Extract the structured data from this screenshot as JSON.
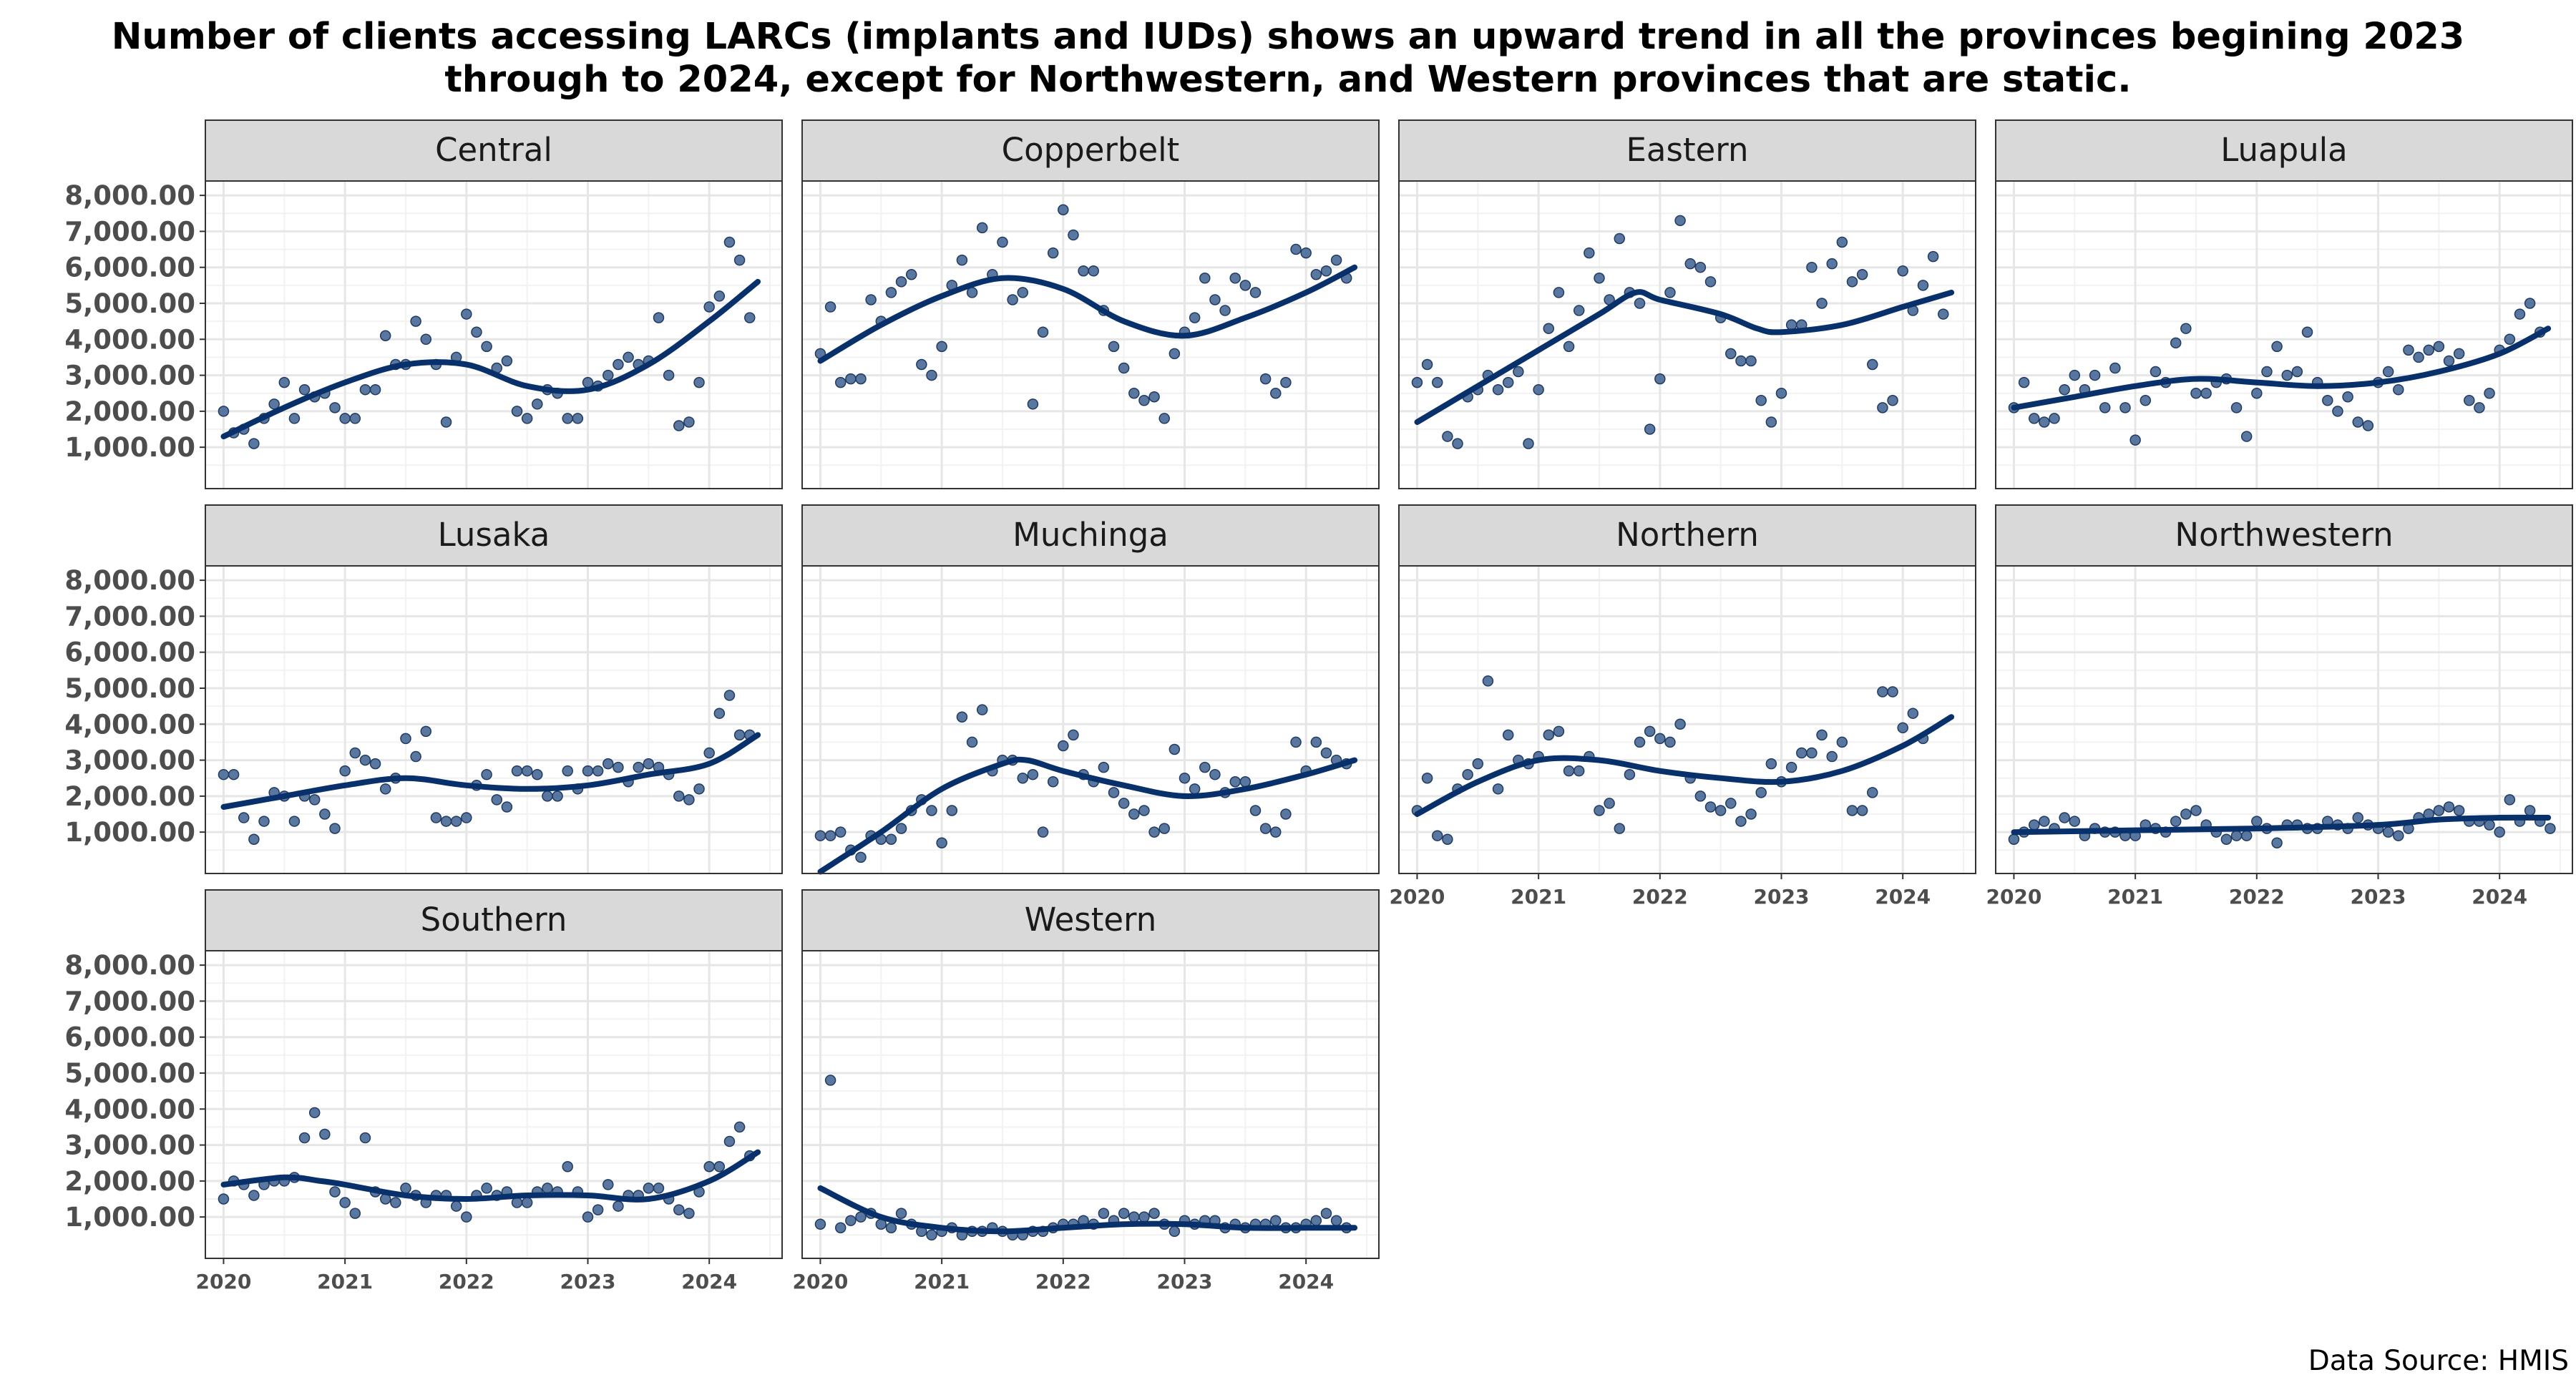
{
  "chart_data": {
    "type": "scatter",
    "title_line1": "Number of clients accessing LARCs (implants and IUDs) shows an upward trend in all the provinces begining 2023",
    "title_line2": "through to 2024, except for Northwestern, and Western provinces that are static.",
    "caption": "Data Source: HMIS",
    "xlabel": "",
    "ylabel": "",
    "x_ticks": [
      2020,
      2021,
      2022,
      2023,
      2024
    ],
    "y_ticks": [
      "1,000.00",
      "2,000.00",
      "3,000.00",
      "4,000.00",
      "5,000.00",
      "6,000.00",
      "7,000.00",
      "8,000.00"
    ],
    "y_tick_values": [
      1000,
      2000,
      3000,
      4000,
      5000,
      6000,
      7000,
      8000
    ],
    "xlim": [
      2019.85,
      2024.6
    ],
    "ylim": [
      -150,
      8400
    ],
    "grid": true,
    "point_color": "#3d5f8f",
    "line_color": "#08306b",
    "strip_color": "#d9d9d9",
    "x_start": "2020-01",
    "interval": "monthly",
    "panels": [
      {
        "name": "Central",
        "trend": [
          [
            2020,
            1300
          ],
          [
            2020.5,
            2100
          ],
          [
            2021,
            2800
          ],
          [
            2021.5,
            3300
          ],
          [
            2022,
            3300
          ],
          [
            2022.5,
            2700
          ],
          [
            2023,
            2600
          ],
          [
            2023.5,
            3300
          ],
          [
            2024,
            4500
          ],
          [
            2024.4,
            5600
          ]
        ],
        "points": [
          2000,
          1400,
          1500,
          1100,
          1800,
          2200,
          2800,
          1800,
          2600,
          2400,
          2500,
          2100,
          1800,
          1800,
          2600,
          2600,
          4100,
          3300,
          3300,
          4500,
          4000,
          3300,
          1700,
          3500,
          4700,
          4200,
          3800,
          3200,
          3400,
          2000,
          1800,
          2200,
          2600,
          2500,
          1800,
          1800,
          2800,
          2700,
          3000,
          3300,
          3500,
          3300,
          3400,
          4600,
          3000,
          1600,
          1700,
          2800,
          4900,
          5200,
          6700,
          6200,
          4600
        ]
      },
      {
        "name": "Copperbelt",
        "trend": [
          [
            2020,
            3400
          ],
          [
            2020.5,
            4400
          ],
          [
            2021,
            5200
          ],
          [
            2021.5,
            5700
          ],
          [
            2022,
            5400
          ],
          [
            2022.5,
            4500
          ],
          [
            2023,
            4100
          ],
          [
            2023.5,
            4600
          ],
          [
            2024,
            5300
          ],
          [
            2024.4,
            6000
          ]
        ],
        "points": [
          3600,
          4900,
          2800,
          2900,
          2900,
          5100,
          4500,
          5300,
          5600,
          5800,
          3300,
          3000,
          3800,
          5500,
          6200,
          5300,
          7100,
          5800,
          6700,
          5100,
          5300,
          2200,
          4200,
          6400,
          7600,
          6900,
          5900,
          5900,
          4800,
          3800,
          3200,
          2500,
          2300,
          2400,
          1800,
          3600,
          4200,
          4600,
          5700,
          5100,
          4800,
          5700,
          5500,
          5300,
          2900,
          2500,
          2800,
          6500,
          6400,
          5800,
          5900,
          6200,
          5700
        ]
      },
      {
        "name": "Eastern",
        "trend": [
          [
            2020,
            1700
          ],
          [
            2020.5,
            2700
          ],
          [
            2021,
            3700
          ],
          [
            2021.5,
            4700
          ],
          [
            2021.8,
            5300
          ],
          [
            2022,
            5100
          ],
          [
            2022.5,
            4700
          ],
          [
            2022.8,
            4300
          ],
          [
            2023,
            4200
          ],
          [
            2023.5,
            4400
          ],
          [
            2024,
            4900
          ],
          [
            2024.4,
            5300
          ]
        ],
        "points": [
          2800,
          3300,
          2800,
          1300,
          1100,
          2400,
          2600,
          3000,
          2600,
          2800,
          3100,
          1100,
          2600,
          4300,
          5300,
          3800,
          4800,
          6400,
          5700,
          5100,
          6800,
          5300,
          5000,
          1500,
          2900,
          5300,
          7300,
          6100,
          6000,
          5600,
          4600,
          3600,
          3400,
          3400,
          2300,
          1700,
          2500,
          4400,
          4400,
          6000,
          5000,
          6100,
          6700,
          5600,
          5800,
          3300,
          2100,
          2300,
          5900,
          4800,
          5500,
          6300,
          4700
        ]
      },
      {
        "name": "Luapula",
        "trend": [
          [
            2020,
            2100
          ],
          [
            2020.5,
            2400
          ],
          [
            2021,
            2700
          ],
          [
            2021.5,
            2900
          ],
          [
            2022,
            2800
          ],
          [
            2022.5,
            2700
          ],
          [
            2023,
            2800
          ],
          [
            2023.5,
            3100
          ],
          [
            2024,
            3600
          ],
          [
            2024.4,
            4300
          ]
        ],
        "points": [
          2100,
          2800,
          1800,
          1700,
          1800,
          2600,
          3000,
          2600,
          3000,
          2100,
          3200,
          2100,
          1200,
          2300,
          3100,
          2800,
          3900,
          4300,
          2500,
          2500,
          2800,
          2900,
          2100,
          1300,
          2500,
          3100,
          3800,
          3000,
          3100,
          4200,
          2800,
          2300,
          2000,
          2400,
          1700,
          1600,
          2800,
          3100,
          2600,
          3700,
          3500,
          3700,
          3800,
          3400,
          3600,
          2300,
          2100,
          2500,
          3700,
          4000,
          4700,
          5000,
          4200
        ]
      },
      {
        "name": "Lusaka",
        "trend": [
          [
            2020,
            1700
          ],
          [
            2020.5,
            2000
          ],
          [
            2021,
            2300
          ],
          [
            2021.5,
            2500
          ],
          [
            2022,
            2300
          ],
          [
            2022.5,
            2200
          ],
          [
            2023,
            2300
          ],
          [
            2023.5,
            2600
          ],
          [
            2024,
            2900
          ],
          [
            2024.4,
            3700
          ]
        ],
        "points": [
          2600,
          2600,
          1400,
          800,
          1300,
          2100,
          2000,
          1300,
          2000,
          1900,
          1500,
          1100,
          2700,
          3200,
          3000,
          2900,
          2200,
          2500,
          3600,
          3100,
          3800,
          1400,
          1300,
          1300,
          1400,
          2300,
          2600,
          1900,
          1700,
          2700,
          2700,
          2600,
          2000,
          2000,
          2700,
          2200,
          2700,
          2700,
          2900,
          2800,
          2400,
          2800,
          2900,
          2800,
          2600,
          2000,
          1900,
          2200,
          3200,
          4300,
          4800,
          3700,
          3700
        ]
      },
      {
        "name": "Muchinga",
        "trend": [
          [
            2020,
            -100
          ],
          [
            2020.5,
            1000
          ],
          [
            2021,
            2200
          ],
          [
            2021.5,
            2900
          ],
          [
            2021.7,
            3000
          ],
          [
            2022,
            2700
          ],
          [
            2022.5,
            2300
          ],
          [
            2023,
            2000
          ],
          [
            2023.5,
            2200
          ],
          [
            2024,
            2600
          ],
          [
            2024.4,
            3000
          ]
        ],
        "points": [
          900,
          900,
          1000,
          500,
          300,
          900,
          800,
          800,
          1100,
          1600,
          1900,
          1600,
          700,
          1600,
          4200,
          3500,
          4400,
          2700,
          3000,
          3000,
          2500,
          2600,
          1000,
          2400,
          3400,
          3700,
          2600,
          2400,
          2800,
          2100,
          1800,
          1500,
          1600,
          1000,
          1100,
          3300,
          2500,
          2200,
          2800,
          2600,
          2100,
          2400,
          2400,
          1600,
          1100,
          1000,
          1500,
          3500,
          2700,
          3500,
          3200,
          3000,
          2900
        ]
      },
      {
        "name": "Northern",
        "trend": [
          [
            2020,
            1500
          ],
          [
            2020.5,
            2400
          ],
          [
            2021,
            3000
          ],
          [
            2021.5,
            3000
          ],
          [
            2022,
            2700
          ],
          [
            2022.5,
            2500
          ],
          [
            2023,
            2400
          ],
          [
            2023.5,
            2700
          ],
          [
            2024,
            3400
          ],
          [
            2024.4,
            4200
          ]
        ],
        "points": [
          1600,
          2500,
          900,
          800,
          2200,
          2600,
          2900,
          5200,
          2200,
          3700,
          3000,
          2900,
          3100,
          3700,
          3800,
          2700,
          2700,
          3100,
          1600,
          1800,
          1100,
          2600,
          3500,
          3800,
          3600,
          3500,
          4000,
          2500,
          2000,
          1700,
          1600,
          1800,
          1300,
          1500,
          2100,
          2900,
          2400,
          2800,
          3200,
          3200,
          3700,
          3100,
          3500,
          1600,
          1600,
          2100,
          4900,
          4900,
          3900,
          4300,
          3600
        ]
      },
      {
        "name": "Northwestern",
        "trend": [
          [
            2020,
            1000
          ],
          [
            2021,
            1050
          ],
          [
            2022,
            1100
          ],
          [
            2023,
            1200
          ],
          [
            2023.5,
            1350
          ],
          [
            2024,
            1400
          ],
          [
            2024.4,
            1400
          ]
        ],
        "points": [
          800,
          1000,
          1200,
          1300,
          1100,
          1400,
          1300,
          900,
          1100,
          1000,
          1000,
          900,
          900,
          1200,
          1100,
          1000,
          1300,
          1500,
          1600,
          1200,
          1000,
          800,
          900,
          900,
          1300,
          1100,
          700,
          1200,
          1200,
          1100,
          1100,
          1300,
          1200,
          1100,
          1400,
          1200,
          1100,
          1000,
          900,
          1100,
          1400,
          1500,
          1600,
          1700,
          1600,
          1300,
          1300,
          1200,
          1000,
          1900,
          1300,
          1600,
          1300,
          1100
        ]
      },
      {
        "name": "Southern",
        "trend": [
          [
            2020,
            1900
          ],
          [
            2020.5,
            2100
          ],
          [
            2020.8,
            2000
          ],
          [
            2021,
            1900
          ],
          [
            2021.5,
            1600
          ],
          [
            2022,
            1500
          ],
          [
            2022.5,
            1600
          ],
          [
            2023,
            1600
          ],
          [
            2023.5,
            1500
          ],
          [
            2024,
            2000
          ],
          [
            2024.4,
            2800
          ]
        ],
        "points": [
          1500,
          2000,
          1900,
          1600,
          1900,
          2000,
          2000,
          2100,
          3200,
          3900,
          3300,
          1700,
          1400,
          1100,
          3200,
          1700,
          1500,
          1400,
          1800,
          1600,
          1400,
          1600,
          1600,
          1300,
          1000,
          1600,
          1800,
          1600,
          1700,
          1400,
          1400,
          1700,
          1800,
          1700,
          2400,
          1700,
          1000,
          1200,
          1900,
          1300,
          1600,
          1600,
          1800,
          1800,
          1500,
          1200,
          1100,
          1700,
          2400,
          2400,
          3100,
          3500,
          2700
        ]
      },
      {
        "name": "Western",
        "trend": [
          [
            2020,
            1800
          ],
          [
            2020.5,
            1000
          ],
          [
            2021,
            700
          ],
          [
            2021.5,
            600
          ],
          [
            2022,
            700
          ],
          [
            2022.5,
            800
          ],
          [
            2023,
            800
          ],
          [
            2023.5,
            700
          ],
          [
            2024,
            700
          ],
          [
            2024.4,
            700
          ]
        ],
        "points": [
          800,
          4800,
          700,
          900,
          1000,
          1100,
          800,
          700,
          1100,
          800,
          600,
          500,
          600,
          700,
          500,
          600,
          600,
          700,
          600,
          500,
          500,
          600,
          600,
          700,
          800,
          800,
          900,
          800,
          1100,
          900,
          1100,
          1000,
          1000,
          1100,
          800,
          600,
          900,
          800,
          900,
          900,
          700,
          800,
          700,
          800,
          800,
          900,
          700,
          700,
          800,
          900,
          1100,
          900,
          700
        ]
      }
    ]
  }
}
